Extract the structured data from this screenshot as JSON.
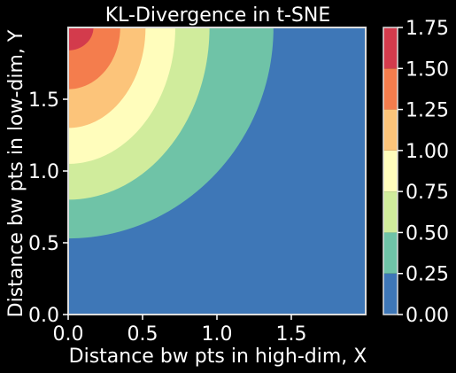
{
  "chart_data": {
    "type": "contour",
    "title": "KL-Divergence in t-SNE",
    "xlabel": "Distance bw pts in high-dim, X",
    "ylabel": "Distance bw pts in low-dim, Y",
    "xlim": [
      0,
      2.0
    ],
    "ylim": [
      0,
      2.0
    ],
    "x_ticks": [
      0.0,
      0.5,
      1.0,
      1.5
    ],
    "x_tick_labels": [
      "0.0",
      "0.5",
      "1.0",
      "1.5"
    ],
    "y_ticks": [
      0.0,
      0.5,
      1.0,
      1.5
    ],
    "y_tick_labels": [
      "0.0",
      "0.5",
      "1.0",
      "1.5"
    ],
    "levels": [
      0.0,
      0.25,
      0.5,
      0.75,
      1.0,
      1.25,
      1.5,
      1.75
    ],
    "level_colors": [
      "#3e77b7",
      "#6fc3a7",
      "#d0ec9c",
      "#fffdbc",
      "#fcc47a",
      "#f47d4d",
      "#d33b4c"
    ],
    "colorbar_tick_labels": [
      "0.00",
      "0.25",
      "0.50",
      "0.75",
      "1.00",
      "1.25",
      "1.50",
      "1.75"
    ],
    "boundaries_y_at_x0": [
      0.53,
      0.8,
      1.05,
      1.3,
      1.57,
      1.84
    ],
    "boundaries_x_at_ytop": [
      1.38,
      0.95,
      0.72,
      0.52,
      0.35,
      0.17
    ],
    "grid": false,
    "colorbar_position": "right"
  },
  "style": {
    "background": "#000000",
    "text_color": "#ffffff",
    "frame_color": "#dddddd"
  }
}
